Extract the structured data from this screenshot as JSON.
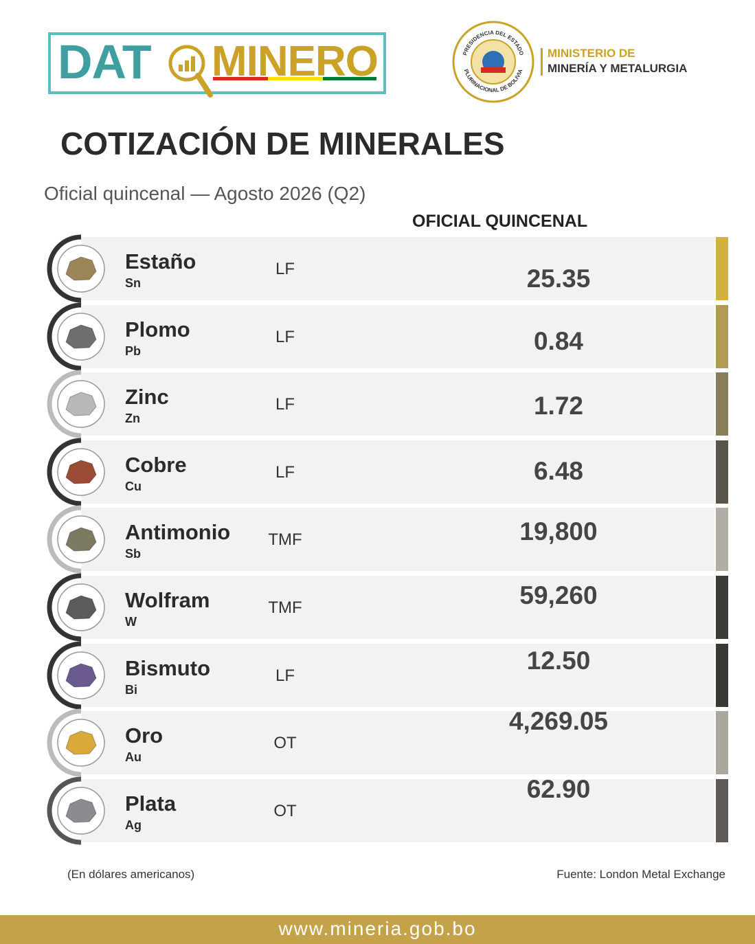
{
  "header": {
    "logo_left": "DAT",
    "logo_right": "MINERO",
    "seal_top": "PRESIDENCIA DEL ESTADO",
    "seal_bottom": "PLURINACIONAL DE BOLIVIA",
    "ministry_line1": "MINISTERIO DE",
    "ministry_line2": "MINERÍA Y METALURGIA"
  },
  "title": "COTIZACIÓN DE MINERALES",
  "subtitle": "Oficial quincenal — Agosto 2026 (Q2)",
  "table": {
    "column_header": "OFICIAL QUINCENAL",
    "rows": [
      [
        "Estaño",
        "Sn",
        "LF",
        "25.35"
      ],
      [
        "Plomo",
        "Pb",
        "LF",
        "0.84"
      ],
      [
        "Zinc",
        "Zn",
        "LF",
        "1.72"
      ],
      [
        "Cobre",
        "Cu",
        "LF",
        "6.48"
      ],
      [
        "Antimonio",
        "Sb",
        "TMF",
        "19,800"
      ],
      [
        "Wolfram",
        "W",
        "TMF",
        "59,260"
      ],
      [
        "Bismuto",
        "Bi",
        "LF",
        "12.50"
      ],
      [
        "Oro",
        "Au",
        "OT",
        "4,269.05"
      ],
      [
        "Plata",
        "Ag",
        "OT",
        "62.90"
      ]
    ]
  },
  "footer": {
    "note": "(En dólares americanos)",
    "source": "Fuente: London Metal Exchange",
    "url": "www.mineria.gob.bo"
  }
}
